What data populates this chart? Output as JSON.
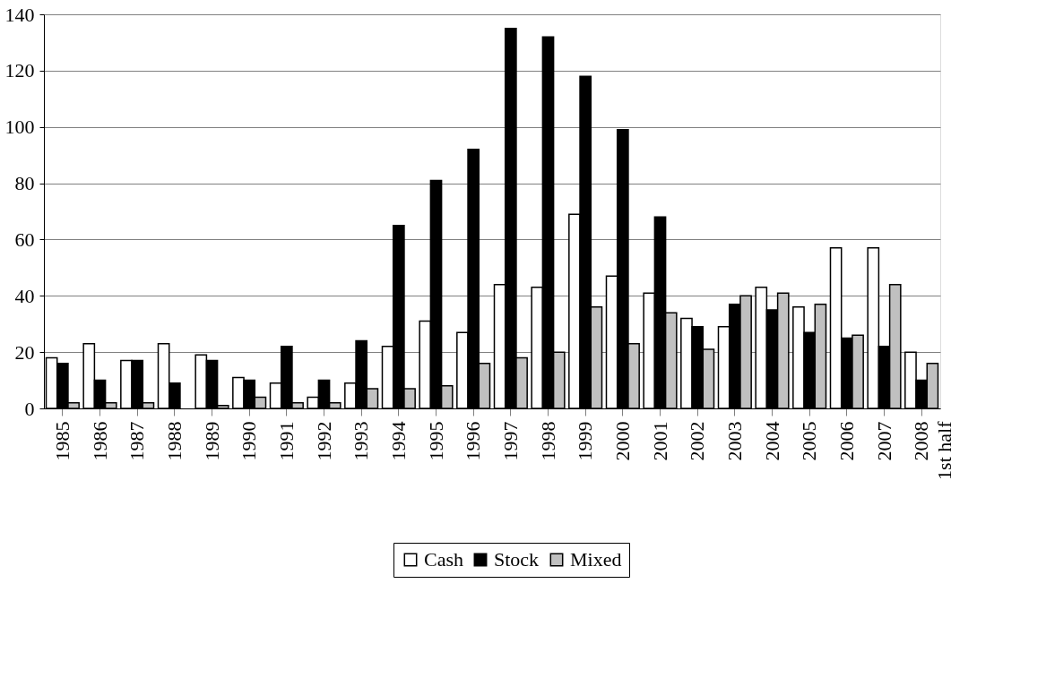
{
  "chart_data": {
    "type": "bar",
    "categories": [
      "1985",
      "1986",
      "1987",
      "1988",
      "1989",
      "1990",
      "1991",
      "1992",
      "1993",
      "1994",
      "1995",
      "1996",
      "1997",
      "1998",
      "1999",
      "2000",
      "2001",
      "2002",
      "2003",
      "2004",
      "2005",
      "2006",
      "2007",
      "2008\n1st half"
    ],
    "series": [
      {
        "name": "Cash",
        "color": "#ffffff",
        "values": [
          18,
          23,
          17,
          23,
          19,
          11,
          9,
          4,
          9,
          22,
          31,
          27,
          44,
          43,
          69,
          47,
          41,
          32,
          29,
          43,
          36,
          57,
          57,
          20
        ]
      },
      {
        "name": "Stock",
        "color": "#000000",
        "values": [
          16,
          10,
          17,
          9,
          17,
          10,
          22,
          10,
          24,
          65,
          81,
          92,
          135,
          132,
          118,
          99,
          68,
          29,
          37,
          35,
          27,
          25,
          22,
          10
        ]
      },
      {
        "name": "Mixed",
        "color": "#c0c0c0",
        "values": [
          2,
          2,
          2,
          0,
          1,
          4,
          2,
          2,
          7,
          7,
          8,
          16,
          18,
          20,
          36,
          23,
          34,
          21,
          40,
          41,
          37,
          26,
          44,
          16
        ]
      }
    ],
    "ylim": [
      0,
      140
    ],
    "yticks": [
      0,
      20,
      40,
      60,
      80,
      100,
      120,
      140
    ],
    "grid": "y",
    "legend": "bottom"
  }
}
